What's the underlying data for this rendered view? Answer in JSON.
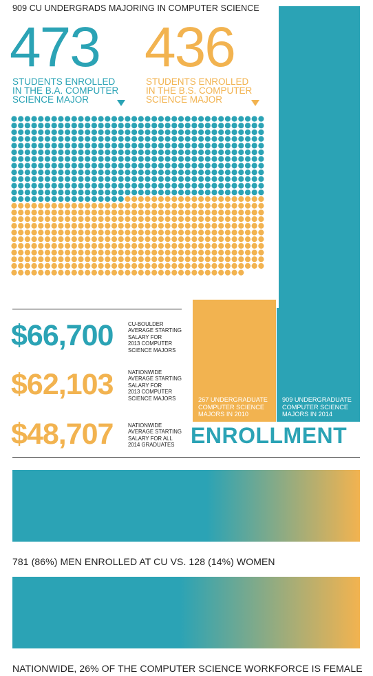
{
  "header": {
    "title": "909 CU UNDERGRADS MAJORING IN COMPUTER SCIENCE"
  },
  "colors": {
    "teal": "#2ba3b5",
    "orange": "#f2b350"
  },
  "majors": {
    "ba": {
      "count": "473",
      "caption": "STUDENTS ENROLLED\nIN THE B.A. COMPUTER\nSCIENCE MAJOR"
    },
    "bs": {
      "count": "436",
      "caption": "STUDENTS ENROLLED\nIN THE B.S. COMPUTER\nSCIENCE MAJOR"
    }
  },
  "salaries": [
    {
      "amount": "$66,700",
      "note": "CU-BOULDER\nAVERAGE STARTING\nSALARY FOR\n2013 COMPUTER\nSCIENCE MAJORS"
    },
    {
      "amount": "$62,103",
      "note": "NATIONWIDE\nAVERAGE STARTING\nSALARY FOR\n2013 COMPUTER\nSCIENCE MAJORS"
    },
    {
      "amount": "$48,707",
      "note": "NATIONWIDE\nAVERAGE STARTING\nSALARY FOR ALL\n2014 GRADUATES"
    }
  ],
  "enrollment": {
    "title": "ENROLLMENT",
    "label_2010": "267 UNDERGRADUATE\nCOMPUTER SCIENCE\nMAJORS IN 2010",
    "label_2014": "909 UNDERGRADUATE\nCOMPUTER SCIENCE\nMAJORS IN 2014"
  },
  "gender": {
    "cu_caption": "781 (86%) MEN ENROLLED AT CU VS. 128 (14%) WOMEN",
    "nation_caption": "NATIONWIDE, 26% OF THE COMPUTER SCIENCE WORKFORCE IS FEMALE"
  },
  "chart_data": [
    {
      "type": "waffle",
      "categories": [
        "B.A. Computer Science",
        "B.S. Computer Science"
      ],
      "values": [
        473,
        436
      ],
      "colors": [
        "#2ba3b5",
        "#f2b350"
      ]
    },
    {
      "type": "bar",
      "categories": [
        "2010",
        "2014"
      ],
      "values": [
        267,
        909
      ],
      "colors": [
        "#f2b350",
        "#2ba3b5"
      ]
    },
    {
      "type": "bar",
      "categories": [
        "Men",
        "Women"
      ],
      "values": [
        86,
        14
      ],
      "colors": [
        "#2ba3b5",
        "#f2b350"
      ]
    },
    {
      "type": "bar",
      "categories": [
        "Male",
        "Female"
      ],
      "values": [
        74,
        26
      ],
      "colors": [
        "#2ba3b5",
        "#f2b350"
      ]
    }
  ]
}
